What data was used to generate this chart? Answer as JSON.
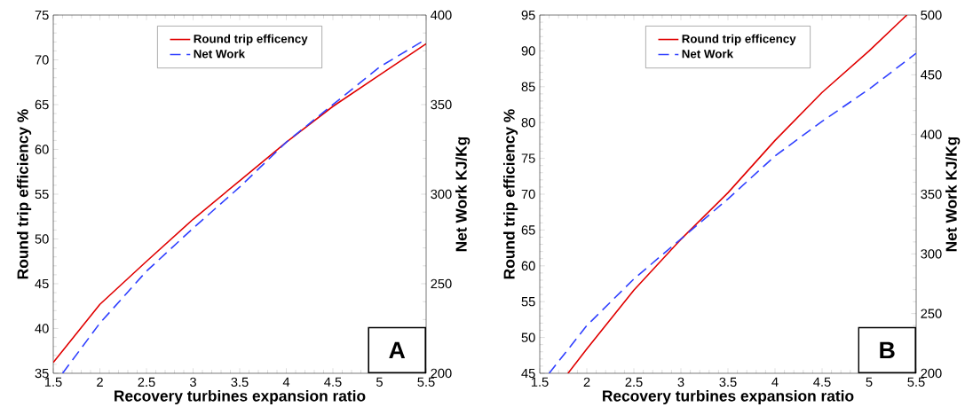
{
  "chart_data": [
    {
      "type": "line",
      "xlabel": "Recovery turbines expansion ratio",
      "ylabel": "Round trip efficiency %",
      "y2label": "Net Work  KJ/Kg",
      "xlim": [
        1.5,
        5.5
      ],
      "xticks": [
        1.5,
        2,
        2.5,
        3,
        3.5,
        4,
        4.5,
        5,
        5.5
      ],
      "ylim": [
        35,
        75
      ],
      "yticks": [
        35,
        40,
        45,
        50,
        55,
        60,
        65,
        70,
        75
      ],
      "y2lim": [
        200,
        400
      ],
      "y2ticks": [
        200,
        250,
        300,
        350,
        400
      ],
      "grid": false,
      "legend": "top",
      "marker": "none",
      "annotations": [
        "A"
      ],
      "series": [
        {
          "name": "Round trip efficency",
          "color": "#e00000",
          "line_style": "solid",
          "x": [
            1.5,
            2,
            2.5,
            3,
            3.5,
            4,
            4.5,
            5,
            5.5
          ],
          "values": [
            36.2,
            42.7,
            47.5,
            52.2,
            56.5,
            60.8,
            64.8,
            68.3,
            71.8
          ]
        },
        {
          "name": "Net Work",
          "color": "#3040ff",
          "line_style": "dashed",
          "axis": "y2",
          "x": [
            1.6,
            2,
            2.5,
            3,
            3.5,
            4,
            4.5,
            5,
            5.45
          ],
          "values": [
            200,
            228,
            257,
            281,
            304,
            329,
            350,
            371,
            385
          ]
        }
      ]
    },
    {
      "type": "line",
      "xlabel": "Recovery turbines expansion ratio",
      "ylabel": "Round trip efficiency %",
      "y2label": "Net Work  KJ/Kg",
      "xlim": [
        1.5,
        5.5
      ],
      "xticks": [
        1.5,
        2,
        2.5,
        3,
        3.5,
        4,
        4.5,
        5,
        5.5
      ],
      "ylim": [
        45,
        95
      ],
      "yticks": [
        45,
        50,
        55,
        60,
        65,
        70,
        75,
        80,
        85,
        90,
        95
      ],
      "y2lim": [
        200,
        500
      ],
      "y2ticks": [
        200,
        250,
        300,
        350,
        400,
        450,
        500
      ],
      "grid": false,
      "legend": "top",
      "marker": "none",
      "annotations": [
        "B"
      ],
      "series": [
        {
          "name": "Round trip efficency",
          "color": "#e00000",
          "line_style": "solid",
          "x": [
            1.8,
            2,
            2.5,
            3,
            3.5,
            4,
            4.5,
            5,
            5.4
          ],
          "values": [
            45,
            48.4,
            56.6,
            63.7,
            70.2,
            77.5,
            84.2,
            90.0,
            95
          ]
        },
        {
          "name": "Net Work",
          "color": "#3040ff",
          "line_style": "dashed",
          "axis": "y2",
          "x": [
            1.6,
            2,
            2.5,
            3,
            3.5,
            4,
            4.5,
            5,
            5.5
          ],
          "values": [
            200,
            240,
            279,
            312.5,
            346,
            382,
            411,
            438,
            468
          ]
        }
      ]
    }
  ]
}
